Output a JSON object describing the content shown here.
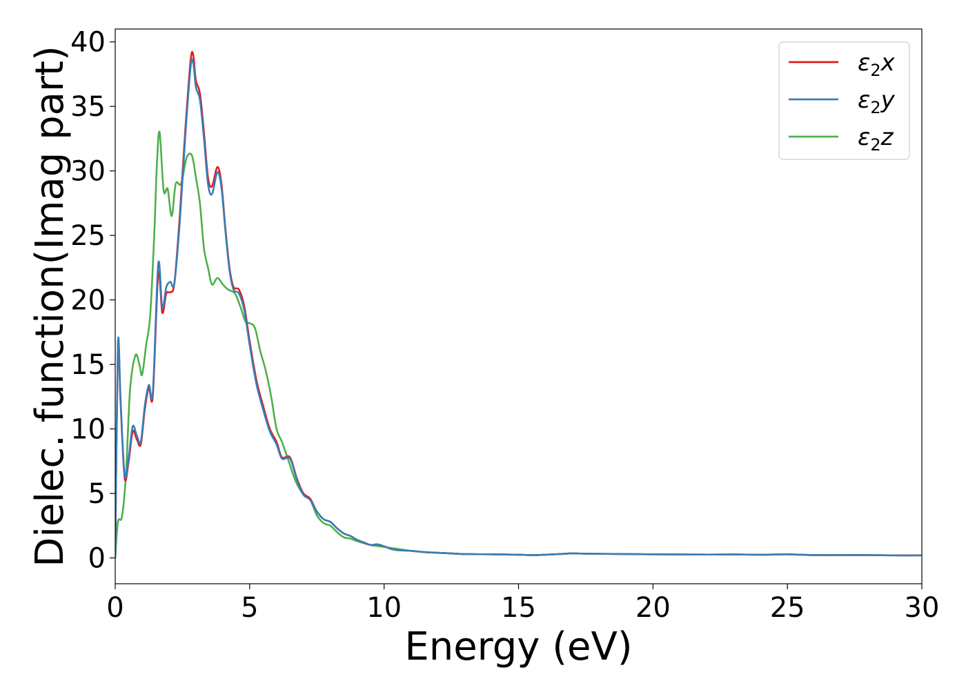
{
  "chart_data": {
    "type": "line",
    "title": "",
    "xlabel": "Energy (eV)",
    "ylabel": "Dielec. function(Imag part)",
    "xlim": [
      0,
      30
    ],
    "ylim": [
      -2,
      41
    ],
    "xticks": [
      0,
      5,
      10,
      15,
      20,
      25,
      30
    ],
    "yticks": [
      0,
      5,
      10,
      15,
      20,
      25,
      30,
      35,
      40
    ],
    "grid": false,
    "legend_position": "top-right",
    "series": [
      {
        "name": "ε2x",
        "legend_main": "ε",
        "legend_sub": "2",
        "legend_suffix": "x",
        "color": "#e41a1c",
        "x": [
          0,
          0.1,
          0.2,
          0.35,
          0.5,
          0.65,
          0.8,
          0.95,
          1.1,
          1.25,
          1.4,
          1.6,
          1.75,
          1.9,
          2.05,
          2.2,
          2.4,
          2.6,
          2.8,
          2.9,
          3.0,
          3.15,
          3.3,
          3.45,
          3.6,
          3.8,
          3.95,
          4.1,
          4.25,
          4.4,
          4.6,
          4.8,
          5.0,
          5.25,
          5.5,
          5.75,
          6.0,
          6.2,
          6.5,
          6.75,
          7.0,
          7.25,
          7.5,
          7.75,
          8.0,
          8.25,
          8.5,
          8.75,
          9.0,
          9.25,
          9.5,
          9.75,
          10.0,
          10.25,
          10.5,
          11.0,
          11.5,
          12.0,
          12.5,
          13.0,
          14.0,
          15.0,
          15.5,
          16.0,
          16.5,
          17.0,
          17.5,
          18.0,
          19.0,
          20.0,
          21.0,
          22.0,
          23.0,
          24.0,
          25.0,
          26.0,
          27.0,
          28.0,
          29.0,
          30.0
        ],
        "values": [
          0,
          16.5,
          12.0,
          6.2,
          7.5,
          9.8,
          9.2,
          8.8,
          11.5,
          13.2,
          12.6,
          22.0,
          19.0,
          20.5,
          20.6,
          21.3,
          26.5,
          33.0,
          38.5,
          39.0,
          37.0,
          36.0,
          33.0,
          29.5,
          28.8,
          30.3,
          29.0,
          25.5,
          22.5,
          21.0,
          20.8,
          19.5,
          16.8,
          13.8,
          11.8,
          10.0,
          9.0,
          7.8,
          7.8,
          6.2,
          5.0,
          4.6,
          3.6,
          3.0,
          2.8,
          2.3,
          1.9,
          1.7,
          1.4,
          1.2,
          1.0,
          1.05,
          0.9,
          0.7,
          0.6,
          0.55,
          0.45,
          0.4,
          0.35,
          0.3,
          0.28,
          0.25,
          0.22,
          0.25,
          0.3,
          0.35,
          0.33,
          0.32,
          0.3,
          0.28,
          0.27,
          0.26,
          0.27,
          0.25,
          0.28,
          0.22,
          0.22,
          0.22,
          0.2,
          0.2
        ]
      },
      {
        "name": "ε2y",
        "legend_main": "ε",
        "legend_sub": "2",
        "legend_suffix": "y",
        "color": "#377eb8",
        "x": [
          0,
          0.1,
          0.2,
          0.35,
          0.5,
          0.65,
          0.8,
          0.95,
          1.1,
          1.25,
          1.4,
          1.6,
          1.75,
          1.9,
          2.05,
          2.2,
          2.4,
          2.6,
          2.8,
          2.9,
          3.0,
          3.15,
          3.3,
          3.45,
          3.6,
          3.8,
          3.95,
          4.1,
          4.25,
          4.4,
          4.6,
          4.8,
          5.0,
          5.25,
          5.5,
          5.75,
          6.0,
          6.2,
          6.5,
          6.75,
          7.0,
          7.25,
          7.5,
          7.75,
          8.0,
          8.25,
          8.5,
          8.75,
          9.0,
          9.25,
          9.5,
          9.75,
          10.0,
          10.25,
          10.5,
          11.0,
          11.5,
          12.0,
          12.5,
          13.0,
          14.0,
          15.0,
          15.5,
          16.0,
          16.5,
          17.0,
          17.5,
          18.0,
          19.0,
          20.0,
          21.0,
          22.0,
          23.0,
          24.0,
          25.0,
          26.0,
          27.0,
          28.0,
          29.0,
          30.0
        ],
        "values": [
          0,
          16.6,
          12.2,
          6.4,
          7.8,
          10.2,
          9.5,
          9.0,
          11.8,
          13.4,
          12.9,
          22.8,
          19.4,
          21.0,
          21.4,
          21.3,
          26.0,
          32.5,
          38.0,
          38.4,
          36.5,
          35.5,
          32.5,
          29.0,
          28.2,
          29.9,
          28.7,
          25.3,
          22.3,
          20.8,
          20.5,
          19.2,
          16.5,
          13.5,
          11.5,
          9.8,
          8.8,
          7.7,
          7.7,
          6.1,
          4.9,
          4.5,
          3.6,
          3.0,
          2.8,
          2.3,
          1.9,
          1.7,
          1.4,
          1.2,
          1.0,
          1.05,
          0.9,
          0.7,
          0.6,
          0.55,
          0.45,
          0.4,
          0.35,
          0.3,
          0.28,
          0.25,
          0.22,
          0.25,
          0.3,
          0.35,
          0.33,
          0.32,
          0.3,
          0.28,
          0.27,
          0.26,
          0.27,
          0.25,
          0.28,
          0.22,
          0.22,
          0.22,
          0.2,
          0.2
        ]
      },
      {
        "name": "ε2z",
        "legend_main": "ε",
        "legend_sub": "2",
        "legend_suffix": "z",
        "color": "#4daf4a",
        "x": [
          0,
          0.1,
          0.25,
          0.4,
          0.55,
          0.75,
          0.9,
          1.0,
          1.15,
          1.3,
          1.45,
          1.55,
          1.65,
          1.8,
          1.95,
          2.1,
          2.25,
          2.45,
          2.65,
          2.85,
          3.0,
          3.15,
          3.3,
          3.45,
          3.6,
          3.8,
          4.0,
          4.2,
          4.45,
          4.65,
          4.85,
          5.0,
          5.2,
          5.4,
          5.6,
          5.8,
          6.0,
          6.2,
          6.45,
          6.7,
          7.0,
          7.25,
          7.5,
          7.75,
          8.0,
          8.25,
          8.5,
          8.75,
          9.0,
          9.5,
          10.0,
          10.5,
          11.0,
          11.5,
          12.0,
          12.5,
          13.0,
          14.0,
          15.0,
          15.5,
          16.0,
          16.5,
          17.0,
          17.5,
          18.0,
          19.0,
          20.0,
          21.0,
          22.0,
          23.0,
          24.0,
          25.0,
          26.0,
          27.0,
          28.0,
          29.0,
          30.0
        ],
        "values": [
          0,
          2.8,
          3.2,
          6.5,
          13.0,
          15.7,
          15.0,
          14.2,
          16.5,
          18.8,
          25.0,
          30.5,
          33.0,
          28.5,
          28.6,
          26.5,
          29.0,
          29.0,
          31.0,
          31.2,
          29.5,
          27.5,
          24.0,
          22.5,
          21.2,
          21.7,
          21.2,
          20.8,
          20.5,
          19.5,
          18.3,
          18.2,
          17.8,
          16.0,
          14.5,
          12.5,
          10.0,
          9.0,
          7.5,
          6.0,
          4.9,
          4.5,
          3.3,
          2.7,
          2.5,
          2.0,
          1.6,
          1.5,
          1.3,
          1.0,
          0.85,
          0.7,
          0.55,
          0.45,
          0.4,
          0.35,
          0.3,
          0.28,
          0.25,
          0.22,
          0.25,
          0.3,
          0.35,
          0.33,
          0.32,
          0.3,
          0.28,
          0.27,
          0.26,
          0.27,
          0.25,
          0.28,
          0.22,
          0.22,
          0.22,
          0.2,
          0.2
        ]
      }
    ]
  }
}
